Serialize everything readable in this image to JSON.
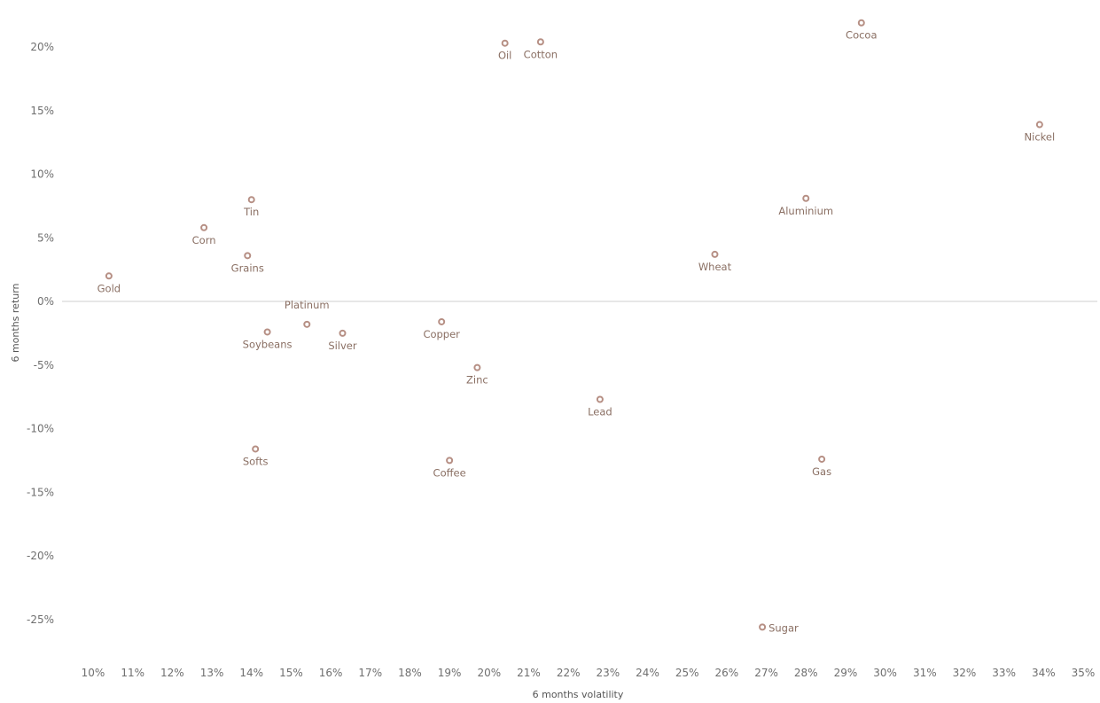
{
  "chart_data": {
    "type": "scatter",
    "xlabel": "6 months volatility",
    "ylabel": "6 months return",
    "xlim": [
      9.6,
      35.3
    ],
    "ylim": [
      -29,
      23
    ],
    "x_ticks": [
      10,
      11,
      12,
      13,
      14,
      15,
      16,
      17,
      18,
      19,
      20,
      21,
      22,
      23,
      24,
      25,
      26,
      27,
      28,
      29,
      30,
      31,
      32,
      33,
      34,
      35
    ],
    "y_ticks": [
      20,
      15,
      10,
      5,
      0,
      -5,
      -10,
      -15,
      -20,
      -25
    ],
    "x_tick_labels": [
      "10%",
      "11%",
      "12%",
      "13%",
      "14%",
      "15%",
      "16%",
      "17%",
      "18%",
      "19%",
      "20%",
      "21%",
      "22%",
      "23%",
      "24%",
      "25%",
      "26%",
      "27%",
      "28%",
      "29%",
      "30%",
      "31%",
      "32%",
      "33%",
      "34%",
      "35%"
    ],
    "y_tick_labels": [
      "20%",
      "15%",
      "10%",
      "5%",
      "0%",
      "-5%",
      "-10%",
      "-15%",
      "-20%",
      "-25%"
    ],
    "grid": false,
    "zero_line": true,
    "marker_color": "#b68f84",
    "label_color": "#8a6f63",
    "points": [
      {
        "name": "Gold",
        "x": 10.4,
        "y": 2.0,
        "label_pos": "below"
      },
      {
        "name": "Corn",
        "x": 12.8,
        "y": 5.8,
        "label_pos": "below"
      },
      {
        "name": "Tin",
        "x": 14.0,
        "y": 8.0,
        "label_pos": "below"
      },
      {
        "name": "Grains",
        "x": 13.9,
        "y": 3.6,
        "label_pos": "below"
      },
      {
        "name": "Soybeans",
        "x": 14.4,
        "y": -2.4,
        "label_pos": "below"
      },
      {
        "name": "Platinum",
        "x": 15.4,
        "y": -1.8,
        "label_pos": "above"
      },
      {
        "name": "Silver",
        "x": 16.3,
        "y": -2.5,
        "label_pos": "below"
      },
      {
        "name": "Softs",
        "x": 14.1,
        "y": -11.6,
        "label_pos": "below"
      },
      {
        "name": "Copper",
        "x": 18.8,
        "y": -1.6,
        "label_pos": "below"
      },
      {
        "name": "Zinc",
        "x": 19.7,
        "y": -5.2,
        "label_pos": "below"
      },
      {
        "name": "Coffee",
        "x": 19.0,
        "y": -12.5,
        "label_pos": "below"
      },
      {
        "name": "Oil",
        "x": 20.4,
        "y": 20.3,
        "label_pos": "below"
      },
      {
        "name": "Cotton",
        "x": 21.3,
        "y": 20.4,
        "label_pos": "below"
      },
      {
        "name": "Lead",
        "x": 22.8,
        "y": -7.7,
        "label_pos": "below"
      },
      {
        "name": "Wheat",
        "x": 25.7,
        "y": 3.7,
        "label_pos": "below"
      },
      {
        "name": "Sugar",
        "x": 26.9,
        "y": -25.6,
        "label_pos": "right"
      },
      {
        "name": "Aluminium",
        "x": 28.0,
        "y": 8.1,
        "label_pos": "below"
      },
      {
        "name": "Gas",
        "x": 28.4,
        "y": -12.4,
        "label_pos": "below"
      },
      {
        "name": "Cocoa",
        "x": 29.4,
        "y": 21.9,
        "label_pos": "below"
      },
      {
        "name": "Nickel",
        "x": 33.9,
        "y": 13.9,
        "label_pos": "below"
      }
    ]
  }
}
